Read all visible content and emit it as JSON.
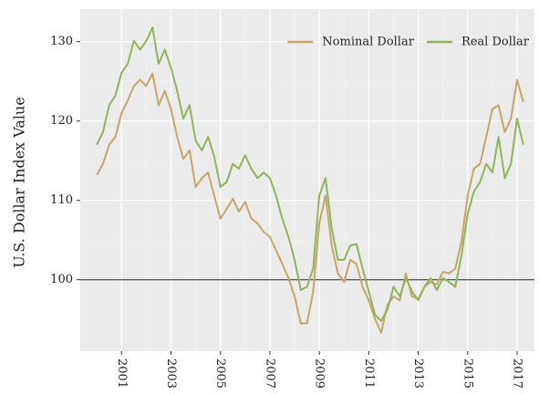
{
  "chart_data": {
    "type": "line",
    "y_label": "U.S. Dollar Index Value",
    "x": [
      2000,
      2000.25,
      2000.5,
      2000.75,
      2001,
      2001.25,
      2001.5,
      2001.75,
      2002,
      2002.25,
      2002.5,
      2002.75,
      2003,
      2003.25,
      2003.5,
      2003.75,
      2004,
      2004.25,
      2004.5,
      2004.75,
      2005,
      2005.25,
      2005.5,
      2005.75,
      2006,
      2006.25,
      2006.5,
      2006.75,
      2007,
      2007.25,
      2007.5,
      2007.75,
      2008,
      2008.25,
      2008.5,
      2008.75,
      2009,
      2009.25,
      2009.5,
      2009.75,
      2010,
      2010.25,
      2010.5,
      2010.75,
      2011,
      2011.25,
      2011.5,
      2011.75,
      2012,
      2012.25,
      2012.5,
      2012.75,
      2013,
      2013.25,
      2013.5,
      2013.75,
      2014,
      2014.25,
      2014.5,
      2014.75,
      2015,
      2015.25,
      2015.5,
      2015.75,
      2016,
      2016.25,
      2016.5,
      2016.75,
      2017,
      2017.25
    ],
    "series": [
      {
        "name": "Nominal Dollar",
        "color": "#c9a567",
        "values": [
          113.2,
          114.6,
          117,
          118,
          121,
          122.6,
          124.4,
          125.2,
          124.4,
          126,
          122,
          123.8,
          121.5,
          118,
          115.2,
          116.3,
          111.7,
          112.8,
          113.5,
          110.6,
          107.7,
          108.9,
          110.2,
          108.6,
          109.8,
          107.7,
          107.1,
          106,
          105.4,
          103.7,
          102,
          100.2,
          97.9,
          94.5,
          94.5,
          98.5,
          107.1,
          110.6,
          104.3,
          100.8,
          99.7,
          102.5,
          102,
          99.1,
          97.4,
          95.1,
          93.3,
          96.8,
          97.9,
          97.4,
          100.8,
          97.9,
          97.6,
          99.1,
          99.7,
          99.4,
          101,
          100.8,
          101.4,
          104.8,
          110.6,
          114,
          114.6,
          118,
          121.5,
          122,
          118.6,
          120.3,
          125.2,
          122.4
        ]
      },
      {
        "name": "Real Dollar",
        "color": "#8fb55c",
        "values": [
          117,
          118.6,
          122,
          123.2,
          126.1,
          127.2,
          130.1,
          129,
          130.1,
          131.8,
          127.2,
          129,
          126.7,
          123.8,
          120.3,
          122,
          117.5,
          116.3,
          118,
          115.5,
          111.7,
          112.3,
          114.6,
          114,
          115.7,
          114,
          112.8,
          113.5,
          112.8,
          110.6,
          107.7,
          105.4,
          102.5,
          98.7,
          99.1,
          101.4,
          110.6,
          112.8,
          106.5,
          102.5,
          102.5,
          104.3,
          104.5,
          101.4,
          98.5,
          95.6,
          94.8,
          96.2,
          99.1,
          97.9,
          100.2,
          98.5,
          97.4,
          99.1,
          100.2,
          98.7,
          100.2,
          99.7,
          99.1,
          103.1,
          108.3,
          111.1,
          112.3,
          114.6,
          113.5,
          118,
          112.8,
          114.6,
          120.3,
          117
        ]
      }
    ],
    "xlim": [
      1999.33,
      2017.7
    ],
    "xticks": [
      2001,
      2003,
      2005,
      2007,
      2009,
      2011,
      2013,
      2015,
      2017
    ],
    "ylim": [
      91,
      134.1
    ],
    "yticks": [
      100,
      110,
      120,
      130
    ],
    "hline": 100,
    "grid": true,
    "legend": "top-right"
  }
}
